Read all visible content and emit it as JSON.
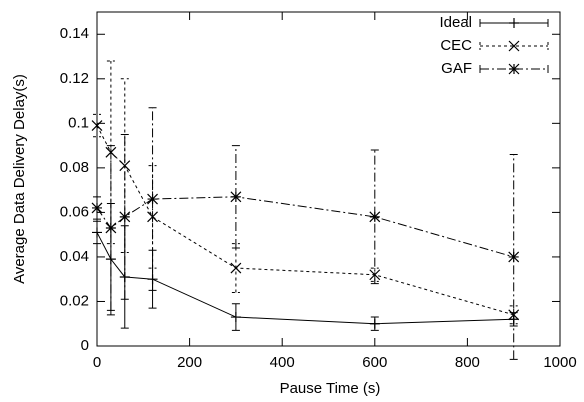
{
  "chart_data": {
    "type": "line",
    "xlabel": "Pause Time (s)",
    "ylabel": "Average Data Delivery Delay(s)",
    "x": [
      0,
      30,
      60,
      120,
      300,
      600,
      900
    ],
    "series": [
      {
        "name": "Ideal",
        "color": "#000000",
        "style": "solid",
        "marker": "plus",
        "values": [
          0.051,
          0.039,
          0.031,
          0.03,
          0.013,
          0.01,
          0.012
        ],
        "errors": [
          0.005,
          0.025,
          0.023,
          0.013,
          0.006,
          0.003,
          0.003
        ]
      },
      {
        "name": "CEC",
        "color": "#000000",
        "style": "dotted",
        "marker": "cross",
        "values": [
          0.099,
          0.087,
          0.081,
          0.058,
          0.035,
          0.032,
          0.014
        ],
        "errors": [
          0.005,
          0.041,
          0.039,
          0.023,
          0.011,
          0.003,
          0.004
        ]
      },
      {
        "name": "GAF",
        "color": "#000000",
        "style": "dashdot",
        "marker": "star",
        "values": [
          0.062,
          0.053,
          0.058,
          0.066,
          0.067,
          0.058,
          0.04
        ],
        "errors": [
          0.005,
          0.037,
          0.037,
          0.041,
          0.023,
          0.03,
          0.046
        ]
      }
    ],
    "xlim": [
      0,
      1000
    ],
    "xticks": [
      0,
      200,
      400,
      600,
      800,
      1000
    ],
    "ylim": [
      0,
      0.15
    ],
    "yticks": [
      0,
      0.02,
      0.04,
      0.06,
      0.08,
      0.1,
      0.12,
      0.14
    ],
    "legend": "top-right",
    "grid": false
  }
}
